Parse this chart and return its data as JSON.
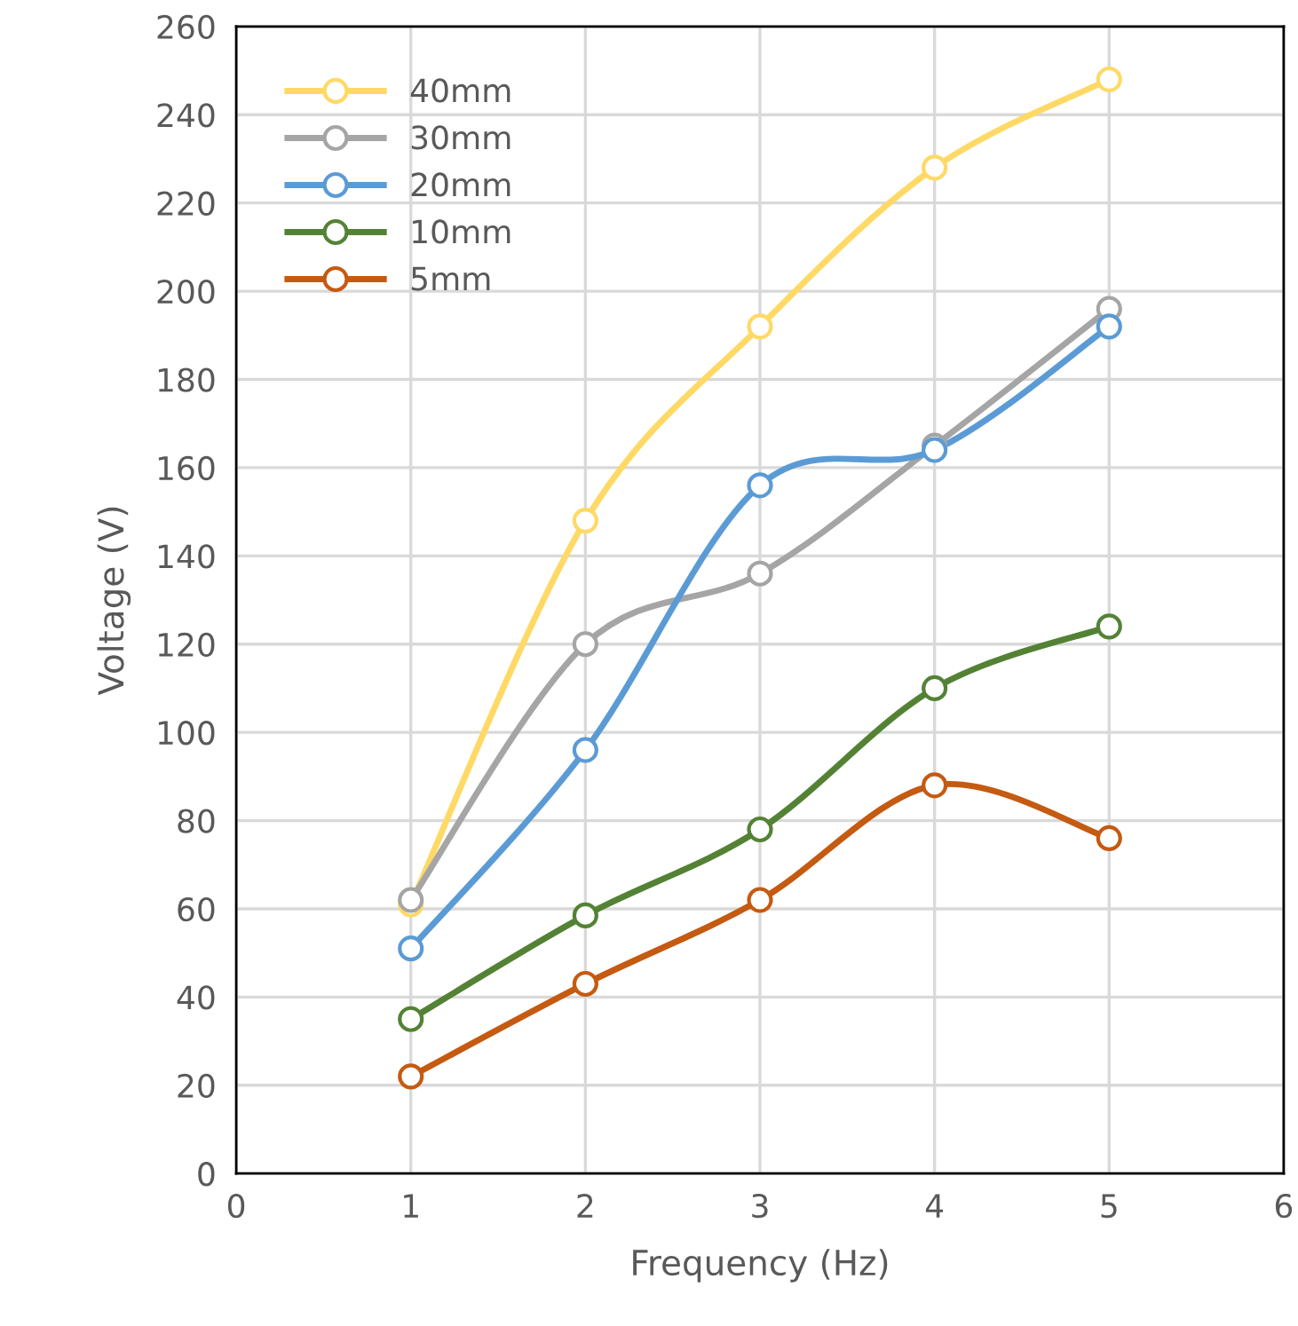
{
  "chart_data": {
    "type": "line",
    "xlabel": "Frequency (Hz)",
    "ylabel": "Voltage (V)",
    "x": [
      1,
      2,
      3,
      4,
      5
    ],
    "series": [
      {
        "name": "40mm",
        "color": "#ffd966",
        "values": [
          61,
          148,
          192,
          228,
          248
        ]
      },
      {
        "name": "30mm",
        "color": "#a5a5a5",
        "values": [
          62,
          120,
          136,
          165,
          196
        ]
      },
      {
        "name": "20mm",
        "color": "#5b9bd5",
        "values": [
          51,
          96,
          156,
          164,
          192
        ]
      },
      {
        "name": "10mm",
        "color": "#548235",
        "values": [
          35,
          58.5,
          78,
          110,
          124
        ]
      },
      {
        "name": "5mm",
        "color": "#c55a11",
        "values": [
          22,
          43,
          62,
          88,
          76
        ]
      }
    ],
    "xlim": [
      0,
      6
    ],
    "xticks": [
      0,
      1,
      2,
      3,
      4,
      5,
      6
    ],
    "ylim": [
      0,
      260
    ],
    "yticks": [
      0,
      20,
      40,
      60,
      80,
      100,
      120,
      140,
      160,
      180,
      200,
      220,
      240,
      260
    ],
    "grid": true,
    "legend": "top left",
    "marker": "circle",
    "line_style": "solid"
  }
}
